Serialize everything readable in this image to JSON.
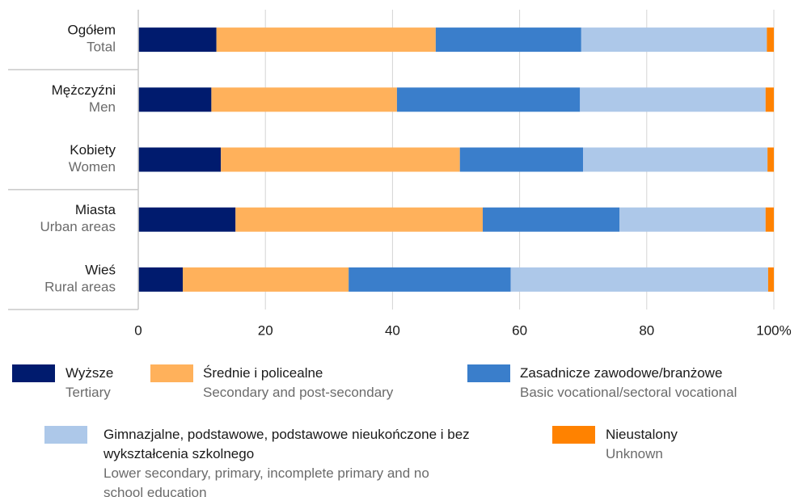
{
  "chart_data": {
    "type": "stacked_bar_horizontal",
    "categories": [
      "Ogółem",
      "Mężczyźni",
      "Kobiety",
      "Miasta",
      "Wieś"
    ],
    "category_subtitles": [
      "Total",
      "Men",
      "Women",
      "Urban areas",
      "Rural areas"
    ],
    "series": [
      {
        "name": "Wyższe",
        "subtitle": "Tertiary",
        "color": "#001b6e",
        "values": [
          12.3,
          11.5,
          13.0,
          15.3,
          7.0
        ]
      },
      {
        "name": "Średnie i policealne",
        "subtitle": "Secondary and post-secondary",
        "color": "#ffb15b",
        "values": [
          34.5,
          29.2,
          37.6,
          38.9,
          26.1
        ]
      },
      {
        "name": "Zasadnicze zawodowe/branżowe",
        "subtitle": "Basic vocational/sectoral vocational",
        "color": "#3a7ecb",
        "values": [
          22.9,
          28.8,
          19.4,
          21.5,
          25.5
        ]
      },
      {
        "name": "Gimnazjalne, podstawowe, podstawowe nieukończone i bez wykształcenia szkolnego",
        "subtitle": "Lower secondary, primary, incomplete primary and no school education",
        "color": "#adc8e9",
        "values": [
          29.2,
          29.2,
          29.0,
          23.0,
          40.5
        ]
      },
      {
        "name": "Nieustalony",
        "subtitle": "Unknown",
        "color": "#ff8200",
        "values": [
          1.1,
          1.3,
          1.0,
          1.3,
          0.9
        ]
      }
    ],
    "xlim": [
      0,
      100
    ],
    "xticks": [
      0,
      20,
      40,
      60,
      80,
      {
        "value": 100,
        "label": "100%"
      }
    ],
    "grid": true
  }
}
